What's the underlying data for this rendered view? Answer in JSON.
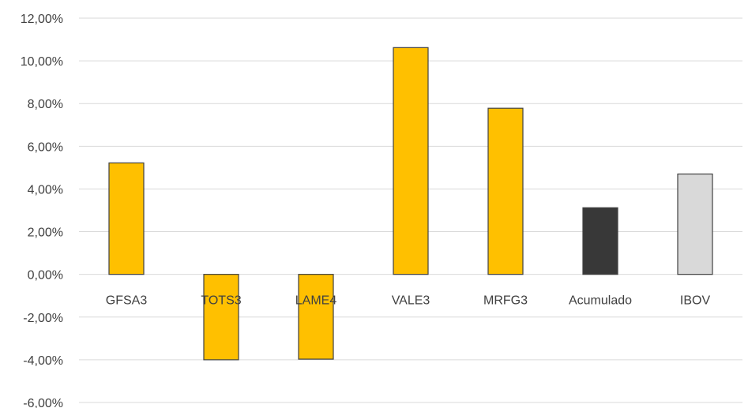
{
  "chart_data": {
    "type": "bar",
    "categories": [
      "GFSA3",
      "TOTS3",
      "LAME4",
      "VALE3",
      "MRFG3",
      "Acumulado",
      "IBOV"
    ],
    "values": [
      5.22,
      -4.0,
      -3.97,
      10.62,
      7.78,
      3.12,
      4.7
    ],
    "bar_colors": [
      "#ffc000",
      "#ffc000",
      "#ffc000",
      "#ffc000",
      "#ffc000",
      "#383838",
      "#d9d9d9"
    ],
    "ylim": [
      -6,
      12
    ],
    "yticks": [
      -6,
      -4,
      -2,
      0,
      2,
      4,
      6,
      8,
      10,
      12
    ],
    "ytick_labels": [
      "-6,00%",
      "-4,00%",
      "-2,00%",
      "0,00%",
      "2,00%",
      "4,00%",
      "6,00%",
      "8,00%",
      "10,00%",
      "12,00%"
    ],
    "grid": true,
    "legend": "none"
  }
}
